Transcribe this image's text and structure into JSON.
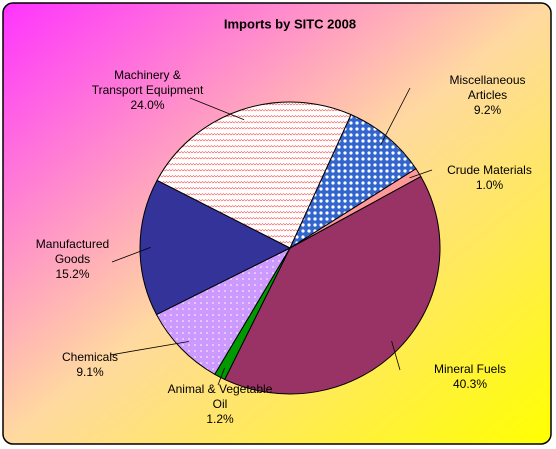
{
  "chart_data": {
    "type": "pie",
    "title": "Imports by SITC 2008",
    "categories": [
      "Miscellaneous Articles",
      "Crude Materials",
      "Mineral Fuels",
      "Animal & Vegetable Oil",
      "Chemicals",
      "Manufactured Goods",
      "Machinery & Transport Equipment"
    ],
    "values": [
      9.2,
      1.0,
      40.3,
      1.2,
      9.1,
      15.2,
      24.0
    ],
    "value_labels": [
      "9.2%",
      "1.0%",
      "40.3%",
      "1.2%",
      "9.1%",
      "15.2%",
      "24.0%"
    ],
    "colors": [
      "#3366cc",
      "#ff9999",
      "#993366",
      "#009900",
      "#cc99ff",
      "#333399",
      "#ff5050"
    ]
  }
}
